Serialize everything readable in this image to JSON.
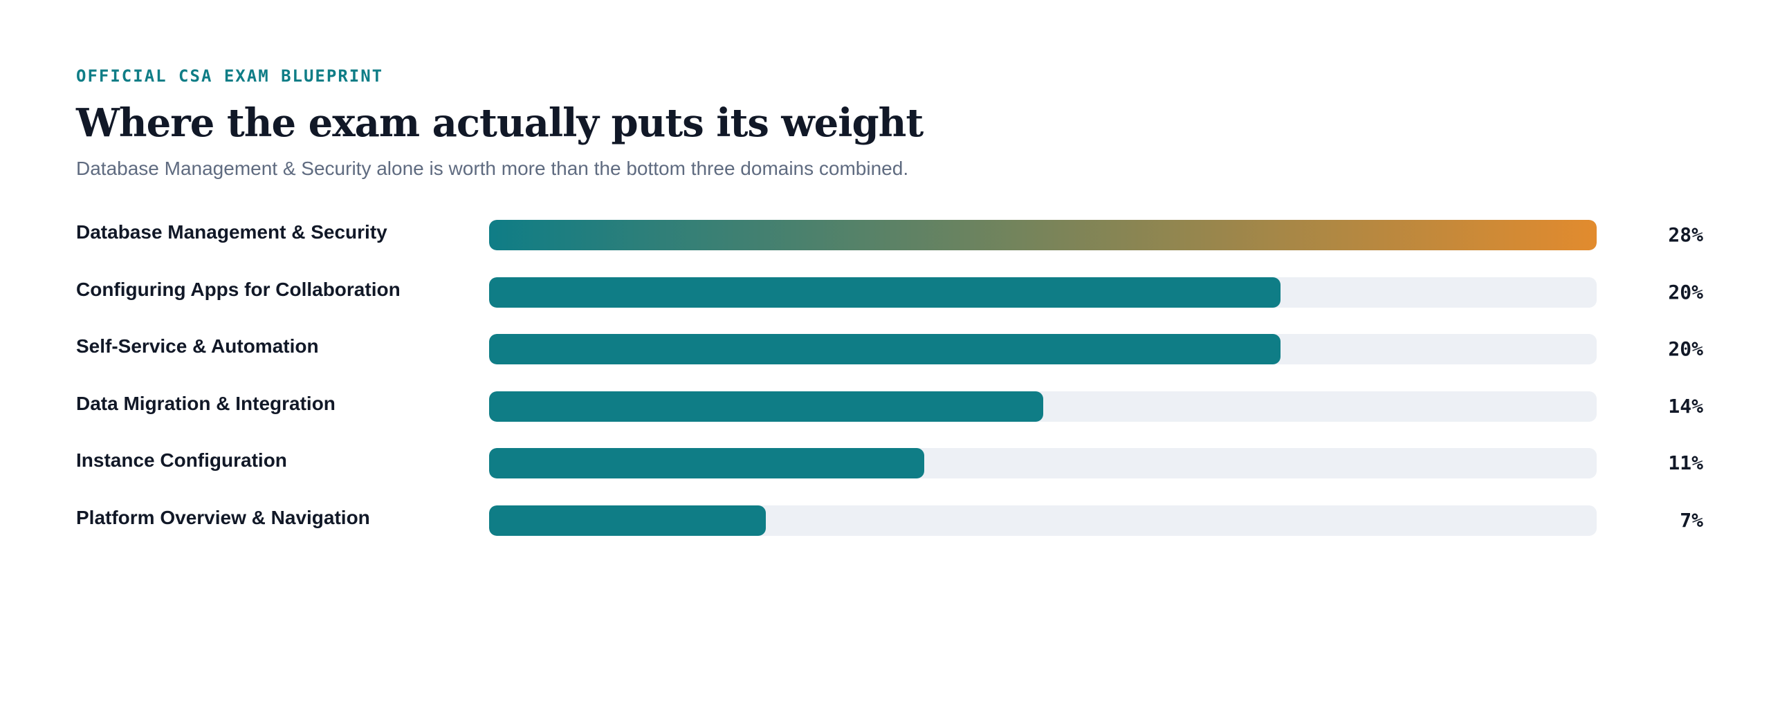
{
  "header": {
    "eyebrow": "OFFICIAL CSA EXAM BLUEPRINT",
    "title": "Where the exam actually puts its weight",
    "subtitle": "Database Management & Security alone is worth more than the bottom three domains combined."
  },
  "colors": {
    "bar": "#0f7d86",
    "bar_highlight_start": "#0f7d86",
    "bar_highlight_end": "#e28b2e",
    "track": "#edf0f5",
    "eyebrow": "#0f7d86",
    "text": "#111827",
    "subtitle": "#5f6b80"
  },
  "chart_data": {
    "type": "bar",
    "orientation": "horizontal",
    "categories": [
      "Database Management & Security",
      "Configuring Apps for Collaboration",
      "Self-Service & Automation",
      "Data Migration & Integration",
      "Instance Configuration",
      "Platform Overview & Navigation"
    ],
    "values": [
      28,
      20,
      20,
      14,
      11,
      7
    ],
    "value_labels": [
      "28%",
      "20%",
      "20%",
      "14%",
      "11%",
      "7%"
    ],
    "unit": "%",
    "xlim": [
      0,
      28
    ],
    "highlight_index": 0,
    "grid": false,
    "legend": "none"
  }
}
